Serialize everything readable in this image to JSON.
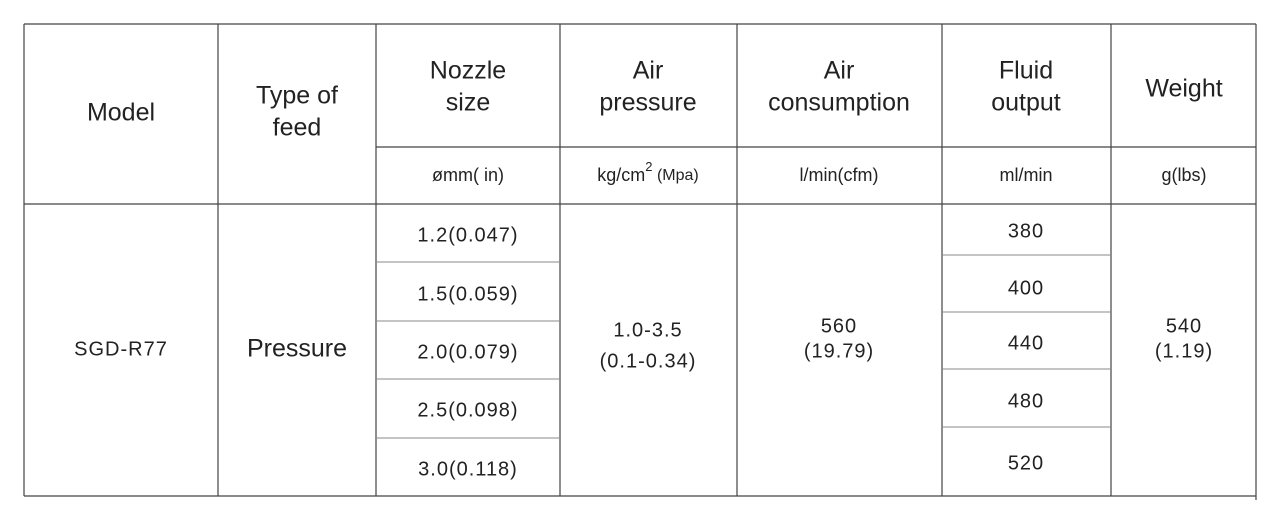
{
  "table": {
    "headers": [
      [
        "Model"
      ],
      [
        "Type  of",
        "feed"
      ],
      [
        "Nozzle",
        "size"
      ],
      [
        "Air",
        "pressure"
      ],
      [
        "Air",
        "consumption"
      ],
      [
        "Fluid",
        "output"
      ],
      [
        "Weight"
      ]
    ],
    "units": {
      "nozzle": "ømm( in)",
      "air_pressure": {
        "text": "kg/cm",
        "sup": "2",
        "rest": " (Mpa)"
      },
      "air_consumption": "l/min(cfm)",
      "fluid_output": "ml/min",
      "weight": "g(lbs)"
    },
    "model": "SGD-R77",
    "feed": "Pressure",
    "nozzle_sizes": [
      "1.2(0.047)",
      "1.5(0.059)",
      "2.0(0.079)",
      "2.5(0.098)",
      "3.0(0.118)"
    ],
    "air_pressure": [
      "1.0-3.5",
      "(0.1-0.34)"
    ],
    "air_consumption": [
      "560",
      "(19.79)"
    ],
    "fluid_output": [
      380,
      400,
      440,
      480,
      520
    ],
    "weight": [
      "540",
      "(1.19)"
    ]
  }
}
